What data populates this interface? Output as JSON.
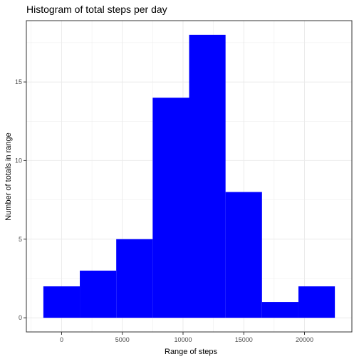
{
  "chart_data": {
    "type": "bar",
    "title": "Histogram of total steps per day",
    "xlabel": "Range of steps",
    "ylabel": "Number of totals in range",
    "x_ticks": [
      0,
      5000,
      10000,
      15000,
      20000
    ],
    "y_ticks": [
      0,
      5,
      10,
      15
    ],
    "xlim": [
      -2900,
      23900
    ],
    "ylim": [
      -0.9,
      18.9
    ],
    "bin_width": 3000,
    "bins": [
      {
        "x_start": -1500,
        "x_end": 1500,
        "count": 2
      },
      {
        "x_start": 1500,
        "x_end": 4500,
        "count": 3
      },
      {
        "x_start": 4500,
        "x_end": 7500,
        "count": 5
      },
      {
        "x_start": 7500,
        "x_end": 10500,
        "count": 14
      },
      {
        "x_start": 10500,
        "x_end": 13500,
        "count": 18
      },
      {
        "x_start": 13500,
        "x_end": 16500,
        "count": 8
      },
      {
        "x_start": 16500,
        "x_end": 19500,
        "count": 1
      },
      {
        "x_start": 19500,
        "x_end": 22500,
        "count": 2
      }
    ],
    "bar_color": "#0000ff",
    "grid": true,
    "grid_color": "#ebebeb",
    "panel_border_color": "#333333",
    "legend": "none"
  }
}
